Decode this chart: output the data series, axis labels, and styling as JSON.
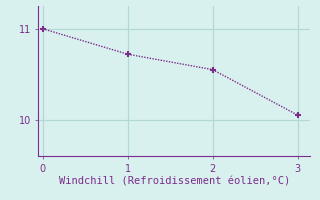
{
  "x": [
    0,
    1,
    2,
    3
  ],
  "y": [
    11.0,
    10.72,
    10.55,
    10.05
  ],
  "line_color": "#7b2d8b",
  "marker_style": "+",
  "marker_size": 5,
  "marker_linewidth": 1.5,
  "xlabel": "Windchill (Refroidissement éolien,°C)",
  "xlim": [
    -0.05,
    3.15
  ],
  "ylim": [
    9.6,
    11.25
  ],
  "yticks": [
    10,
    11
  ],
  "xticks": [
    0,
    1,
    2,
    3
  ],
  "background_color": "#d8f0ee",
  "grid_color": "#b0d8d4",
  "tick_color": "#7b2d8b",
  "label_color": "#7b2d8b",
  "font_size": 7,
  "label_font_size": 7.5
}
